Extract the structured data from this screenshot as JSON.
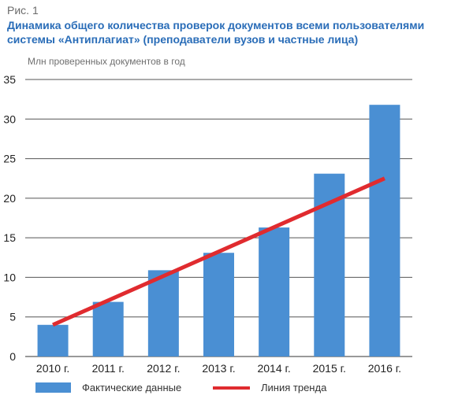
{
  "figure_label": "Рис. 1",
  "title_lines": [
    "Динамика общего количества проверок документов всеми пользователями",
    "системы «Антиплагиат» (преподаватели вузов и частные лица)"
  ],
  "chart_data": {
    "type": "bar",
    "ylabel": "Млн проверенных документов в год",
    "categories": [
      "2010 г.",
      "2011 г.",
      "2012 г.",
      "2013 г.",
      "2014 г.",
      "2015 г.",
      "2016 г."
    ],
    "series": [
      {
        "name": "Фактические данные",
        "type": "bar",
        "color": "#4a8fd3",
        "values": [
          4.0,
          6.9,
          10.9,
          13.1,
          16.3,
          23.1,
          31.8
        ]
      },
      {
        "name": "Линия тренда",
        "type": "line",
        "color": "#e02b2f",
        "values": [
          4.0,
          7.1,
          10.2,
          13.3,
          16.3,
          19.4,
          22.5
        ]
      }
    ],
    "ylim": [
      0,
      35
    ],
    "yticks": [
      0,
      5,
      10,
      15,
      20,
      25,
      30,
      35
    ],
    "grid": true,
    "legend_position": "bottom"
  }
}
